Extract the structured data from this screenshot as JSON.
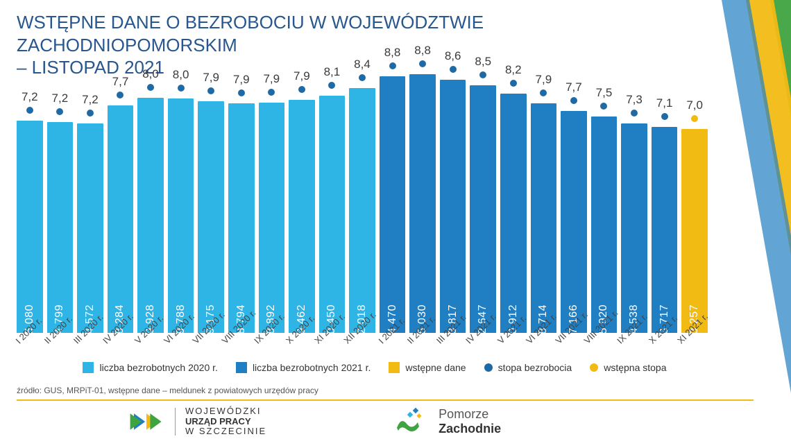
{
  "title_line1": "WSTĘPNE DANE O BEZROBOCIU W WOJEWÓDZTWIE ZACHODNIOPOMORSKIM",
  "title_line2": "– LISTOPAD 2021",
  "colors": {
    "title": "#27578e",
    "bar_2020": "#2fb4e6",
    "bar_2021": "#1f7fc2",
    "bar_preliminary": "#f2bb13",
    "dot_rate": "#1f6aa5",
    "dot_preliminary": "#f2bb13",
    "text_rate": "#3a3a3a",
    "text_inbar": "#ffffff",
    "decor_green": "#3fa33f",
    "decor_yellow": "#f2bb13",
    "decor_blue": "#1f7fc2",
    "hr": "#f2bb13",
    "source": "#555555"
  },
  "chart": {
    "type": "bar_with_markers",
    "y_max": 56000,
    "y_min": 0,
    "bars": [
      {
        "label": "I 2020 r.",
        "value": 45080,
        "value_text": "45 080",
        "rate": 7.2,
        "rate_text": "7,2",
        "series": "2020"
      },
      {
        "label": "II 2020 r.",
        "value": 44799,
        "value_text": "44 799",
        "rate": 7.2,
        "rate_text": "7,2",
        "series": "2020"
      },
      {
        "label": "III 2020 r.",
        "value": 44572,
        "value_text": "44 572",
        "rate": 7.2,
        "rate_text": "7,2",
        "series": "2020"
      },
      {
        "label": "IV 2020 r.",
        "value": 48284,
        "value_text": "48 284",
        "rate": 7.7,
        "rate_text": "7,7",
        "series": "2020"
      },
      {
        "label": "V 2020 r.",
        "value": 49928,
        "value_text": "49 928",
        "rate": 8.0,
        "rate_text": "8,0",
        "series": "2020"
      },
      {
        "label": "VI 2020 r.",
        "value": 49788,
        "value_text": "49 788",
        "rate": 8.0,
        "rate_text": "8,0",
        "series": "2020"
      },
      {
        "label": "VII 2020 r.",
        "value": 49175,
        "value_text": "49 175",
        "rate": 7.9,
        "rate_text": "7,9",
        "series": "2020"
      },
      {
        "label": "VIII 2020 r.",
        "value": 48794,
        "value_text": "48 794",
        "rate": 7.9,
        "rate_text": "7,9",
        "series": "2020"
      },
      {
        "label": "IX 2020 r.",
        "value": 48892,
        "value_text": "48 892",
        "rate": 7.9,
        "rate_text": "7,9",
        "series": "2020"
      },
      {
        "label": "X 2020 r.",
        "value": 49462,
        "value_text": "49 462",
        "rate": 7.9,
        "rate_text": "7,9",
        "series": "2020"
      },
      {
        "label": "XI 2020 r.",
        "value": 50450,
        "value_text": "50 450",
        "rate": 8.1,
        "rate_text": "8,1",
        "series": "2020"
      },
      {
        "label": "XII 2020 r.",
        "value": 52018,
        "value_text": "52 018",
        "rate": 8.4,
        "rate_text": "8,4",
        "series": "2020"
      },
      {
        "label": "I 2021 r.",
        "value": 54470,
        "value_text": "54 470",
        "rate": 8.8,
        "rate_text": "8,8",
        "series": "2021"
      },
      {
        "label": "II 2021 r.",
        "value": 55030,
        "value_text": "55 030",
        "rate": 8.8,
        "rate_text": "8,8",
        "series": "2021"
      },
      {
        "label": "III 2021 r.",
        "value": 53817,
        "value_text": "53 817",
        "rate": 8.6,
        "rate_text": "8,6",
        "series": "2021"
      },
      {
        "label": "IV 2021 r.",
        "value": 52647,
        "value_text": "52 647",
        "rate": 8.5,
        "rate_text": "8,5",
        "series": "2021"
      },
      {
        "label": "V 2021 r.",
        "value": 50912,
        "value_text": "50 912",
        "rate": 8.2,
        "rate_text": "8,2",
        "series": "2021"
      },
      {
        "label": "VI 2021 r.",
        "value": 48714,
        "value_text": "48 714",
        "rate": 7.9,
        "rate_text": "7,9",
        "series": "2021"
      },
      {
        "label": "VII 2021 r.",
        "value": 47166,
        "value_text": "47 166",
        "rate": 7.7,
        "rate_text": "7,7",
        "series": "2021"
      },
      {
        "label": "VIII 2021 r.",
        "value": 45920,
        "value_text": "45 920",
        "rate": 7.5,
        "rate_text": "7,5",
        "series": "2021"
      },
      {
        "label": "IX 2021 r.",
        "value": 44538,
        "value_text": "44 538",
        "rate": 7.3,
        "rate_text": "7,3",
        "series": "2021"
      },
      {
        "label": "X 2021 r.",
        "value": 43717,
        "value_text": "43 717",
        "rate": 7.1,
        "rate_text": "7,1",
        "series": "2021"
      },
      {
        "label": "XI 2021 r.",
        "value": 43257,
        "value_text": "43 257",
        "rate": 7.0,
        "rate_text": "7,0",
        "series": "preliminary"
      }
    ]
  },
  "legend": {
    "unemployed_2020": "liczba bezrobotnych 2020 r.",
    "unemployed_2021": "liczba bezrobotnych 2021 r.",
    "preliminary": "wstępne dane",
    "rate": "stopa bezrobocia",
    "rate_preliminary": "wstępna stopa"
  },
  "source": "źródło: GUS, MRPiT-01, wstępne dane – meldunek z powiatowych urzędów pracy",
  "logos": {
    "wup": {
      "line1": "WOJEWÓDZKI",
      "line2": "URZĄD PRACY",
      "line3": "W  SZCZECINIE"
    },
    "pomorze": {
      "line1": "Pomorze",
      "line2": "Zachodnie"
    }
  }
}
